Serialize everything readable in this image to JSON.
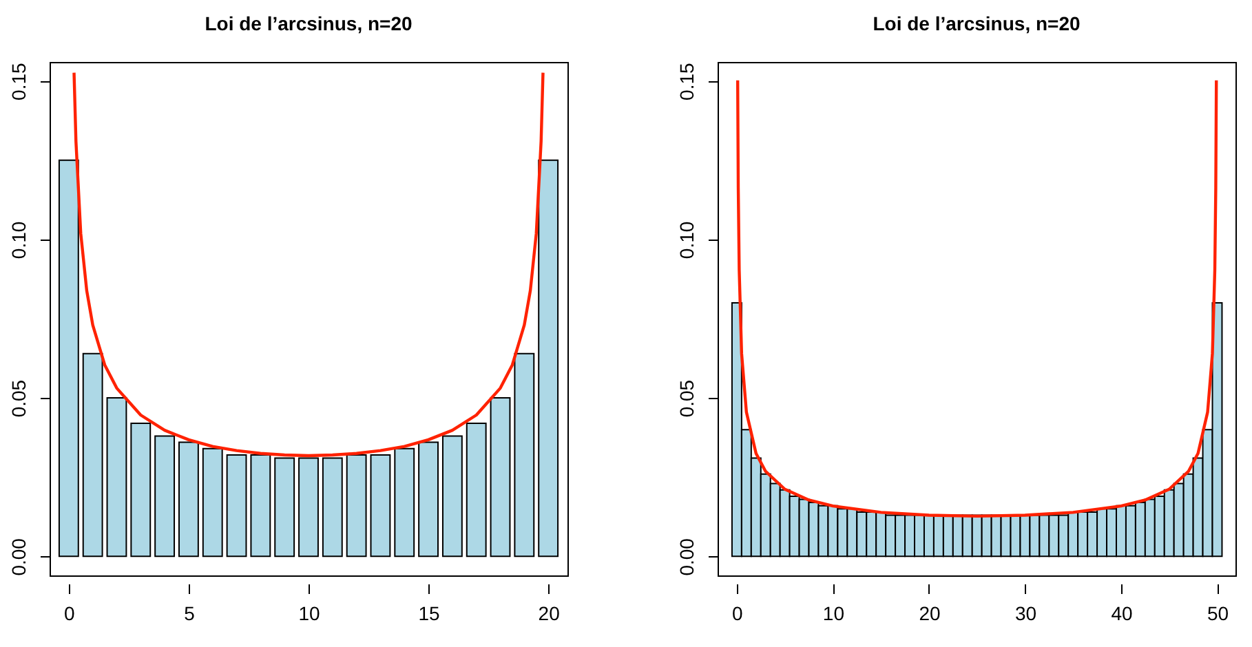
{
  "chart_data": [
    {
      "type": "bar",
      "title": "Loi de l’arcsinus, n=20",
      "xlim": [
        -0.8,
        20.8
      ],
      "xticks": [
        0,
        5,
        10,
        15,
        20
      ],
      "ylim": [
        -0.006,
        0.156
      ],
      "yticks": [
        {
          "value": 0,
          "label": "0.00"
        },
        {
          "value": 0.05,
          "label": "0.05"
        },
        {
          "value": 0.1,
          "label": "0.10"
        },
        {
          "value": 0.15,
          "label": "0.15"
        }
      ],
      "grid": false,
      "series": [
        {
          "color": "#add8e6",
          "x": [
            0,
            1,
            2,
            3,
            4,
            5,
            6,
            7,
            8,
            9,
            10,
            11,
            12,
            13,
            14,
            15,
            16,
            17,
            18,
            19,
            20
          ],
          "values": [
            0.125,
            0.064,
            0.05,
            0.042,
            0.038,
            0.036,
            0.034,
            0.032,
            0.032,
            0.031,
            0.031,
            0.031,
            0.032,
            0.032,
            0.034,
            0.036,
            0.038,
            0.042,
            0.05,
            0.064,
            0.125
          ]
        },
        {
          "type": "line",
          "color": "#ff2200",
          "x": [
            0.22,
            0.3,
            0.5,
            0.75,
            1,
            1.5,
            2,
            3,
            4,
            5,
            6,
            7,
            8,
            9,
            10,
            11,
            12,
            13,
            14,
            15,
            16,
            17,
            18,
            18.5,
            19,
            19.25,
            19.5,
            19.7,
            19.78
          ],
          "values": [
            0.1526,
            0.1309,
            0.1019,
            0.0838,
            0.073,
            0.0604,
            0.0531,
            0.0446,
            0.0398,
            0.0368,
            0.0347,
            0.0334,
            0.0325,
            0.032,
            0.0318,
            0.032,
            0.0325,
            0.0334,
            0.0347,
            0.0368,
            0.0398,
            0.0446,
            0.0531,
            0.0604,
            0.073,
            0.0838,
            0.1019,
            0.1309,
            0.1526
          ]
        }
      ]
    },
    {
      "type": "bar",
      "title": "Loi de l’arcsinus, n=20",
      "xlim": [
        -2,
        51.9
      ],
      "xticks": [
        0,
        10,
        20,
        30,
        40,
        50
      ],
      "ylim": [
        -0.006,
        0.156
      ],
      "yticks": [
        {
          "value": 0,
          "label": "0.00"
        },
        {
          "value": 0.05,
          "label": "0.05"
        },
        {
          "value": 0.1,
          "label": "0.10"
        },
        {
          "value": 0.15,
          "label": "0.15"
        }
      ],
      "grid": false,
      "series": [
        {
          "color": "#add8e6",
          "x": [
            0,
            1,
            2,
            3,
            4,
            5,
            6,
            7,
            8,
            9,
            10,
            11,
            12,
            13,
            14,
            15,
            16,
            17,
            18,
            19,
            20,
            21,
            22,
            23,
            24,
            25,
            26,
            27,
            28,
            29,
            30,
            31,
            32,
            33,
            34,
            35,
            36,
            37,
            38,
            39,
            40,
            41,
            42,
            43,
            44,
            45,
            46,
            47,
            48,
            49,
            50
          ],
          "values": [
            0.08,
            0.04,
            0.031,
            0.026,
            0.023,
            0.021,
            0.019,
            0.018,
            0.017,
            0.016,
            0.016,
            0.015,
            0.015,
            0.014,
            0.014,
            0.014,
            0.013,
            0.013,
            0.013,
            0.013,
            0.013,
            0.013,
            0.013,
            0.013,
            0.013,
            0.013,
            0.013,
            0.013,
            0.013,
            0.013,
            0.013,
            0.013,
            0.013,
            0.013,
            0.013,
            0.014,
            0.014,
            0.014,
            0.015,
            0.015,
            0.016,
            0.016,
            0.017,
            0.018,
            0.019,
            0.021,
            0.023,
            0.026,
            0.031,
            0.04,
            0.08
          ]
        },
        {
          "type": "line",
          "color": "#ff2200",
          "x": [
            0.09,
            0.15,
            0.25,
            0.5,
            1,
            2,
            3,
            5,
            7.5,
            10,
            15,
            20,
            25,
            30,
            35,
            40,
            42.5,
            45,
            47,
            48,
            49,
            49.5,
            49.75,
            49.85,
            49.91
          ],
          "values": [
            0.1502,
            0.1164,
            0.0903,
            0.064,
            0.0455,
            0.0325,
            0.0268,
            0.0212,
            0.0178,
            0.0159,
            0.0139,
            0.013,
            0.0127,
            0.013,
            0.0139,
            0.0159,
            0.0178,
            0.0212,
            0.0268,
            0.0325,
            0.0455,
            0.064,
            0.0903,
            0.1164,
            0.1502
          ]
        }
      ]
    }
  ]
}
